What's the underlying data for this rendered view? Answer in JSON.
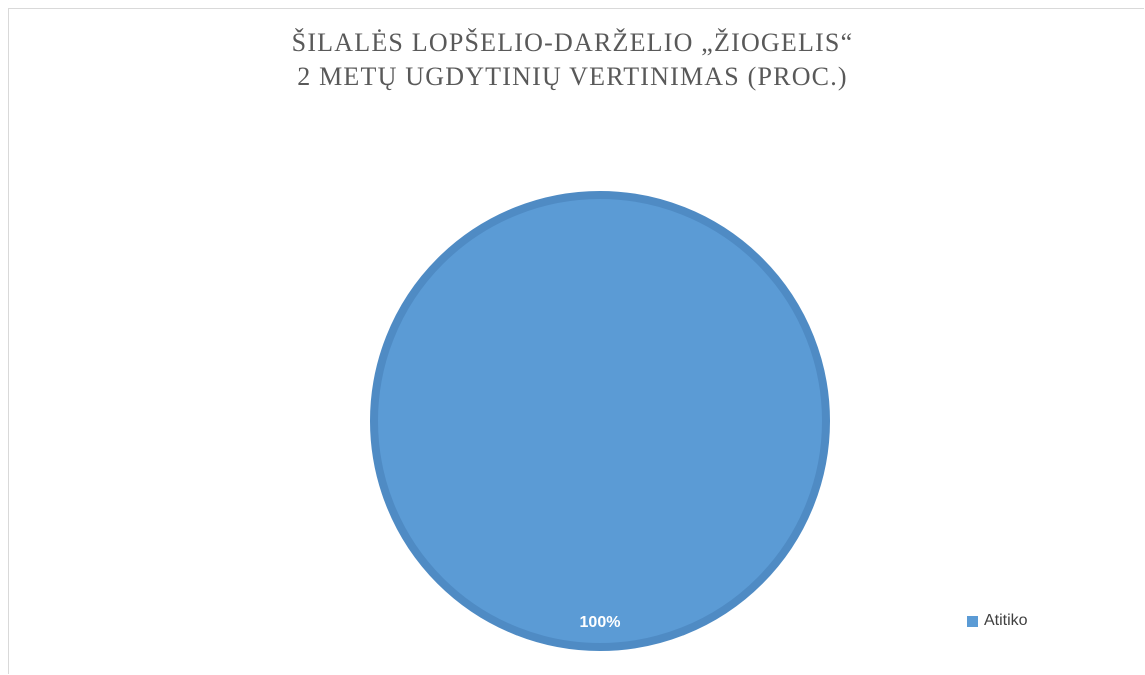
{
  "chart_data": {
    "type": "pie",
    "title": "ŠILALĖS LOPŠELIO-DARŽELIO „ŽIOGELIS“",
    "subtitle": "2 METŲ UGDYTINIŲ VERTINIMAS (PROC.)",
    "categories": [
      "Atitiko"
    ],
    "values": [
      100
    ],
    "data_labels": [
      "100%"
    ],
    "colors": [
      "#5b9bd5"
    ],
    "legend_position": "right"
  }
}
